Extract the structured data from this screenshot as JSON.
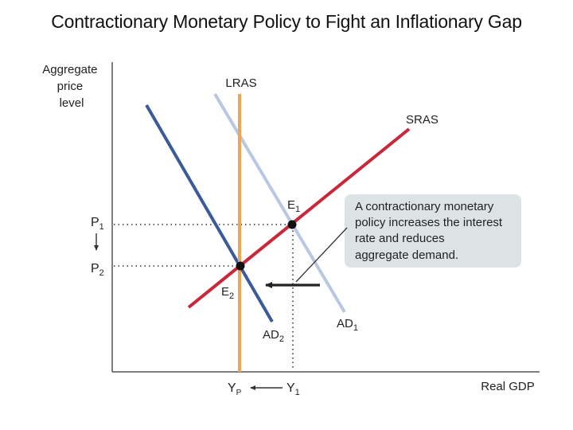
{
  "title": "Contractionary Monetary Policy to Fight an Inflationary Gap",
  "axes": {
    "y_label_lines": [
      "Aggregate",
      "price",
      "level"
    ],
    "x_label": "Real GDP"
  },
  "curves": {
    "lras": "LRAS",
    "sras": "SRAS",
    "ad1": {
      "base": "AD",
      "sub": "1"
    },
    "ad2": {
      "base": "AD",
      "sub": "2"
    }
  },
  "points": {
    "e1": {
      "base": "E",
      "sub": "1"
    },
    "e2": {
      "base": "E",
      "sub": "2"
    }
  },
  "price_levels": {
    "p1": {
      "base": "P",
      "sub": "1"
    },
    "p2": {
      "base": "P",
      "sub": "2"
    }
  },
  "output_levels": {
    "yp": {
      "base": "Y",
      "sub": "P"
    },
    "y1": {
      "base": "Y",
      "sub": "1"
    }
  },
  "callout": {
    "lines": [
      "A contractionary monetary",
      "policy increases the interest",
      "rate and reduces",
      "aggregate demand."
    ]
  },
  "colors": {
    "lras": "#f0a552",
    "sras": "#c8283a",
    "ad1": "#b9c8e2",
    "ad2": "#3a5a9c",
    "callout_bg": "#dde3e4",
    "axis": "#555555"
  }
}
